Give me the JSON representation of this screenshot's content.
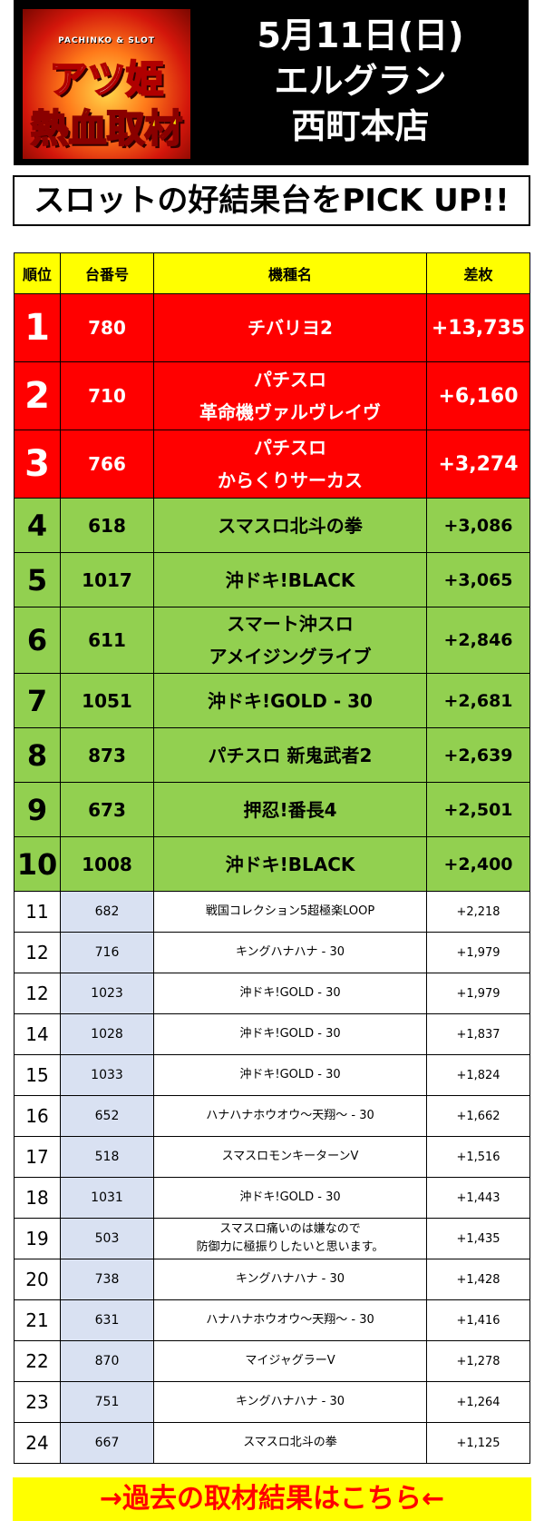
{
  "header": {
    "logo_sub": "PACHINKO & SLOT",
    "logo_line1": "アツ姫",
    "logo_line2": "熱血取材",
    "date": "5月11日(日)",
    "store_line1": "エルグラン",
    "store_line2": "西町本店"
  },
  "subtitle": "スロットの好結果台をPICK UP!!",
  "table": {
    "headers": [
      "順位",
      "台番号",
      "機種名",
      "差枚"
    ],
    "rows": [
      {
        "rank": "1",
        "num": "780",
        "name": [
          "チバリヨ2"
        ],
        "diff": "+13,735"
      },
      {
        "rank": "2",
        "num": "710",
        "name": [
          "パチスロ",
          "革命機ヴァルヴレイヴ"
        ],
        "diff": "+6,160"
      },
      {
        "rank": "3",
        "num": "766",
        "name": [
          "パチスロ",
          "からくりサーカス"
        ],
        "diff": "+3,274"
      },
      {
        "rank": "4",
        "num": "618",
        "name": [
          "スマスロ北斗の拳"
        ],
        "diff": "+3,086"
      },
      {
        "rank": "5",
        "num": "1017",
        "name": [
          "沖ドキ!BLACK"
        ],
        "diff": "+3,065"
      },
      {
        "rank": "6",
        "num": "611",
        "name": [
          "スマート沖スロ",
          "アメイジングライブ"
        ],
        "diff": "+2,846"
      },
      {
        "rank": "7",
        "num": "1051",
        "name": [
          "沖ドキ!GOLD - 30"
        ],
        "diff": "+2,681"
      },
      {
        "rank": "8",
        "num": "873",
        "name": [
          "パチスロ 新鬼武者2"
        ],
        "diff": "+2,639"
      },
      {
        "rank": "9",
        "num": "673",
        "name": [
          "押忍!番長4"
        ],
        "diff": "+2,501"
      },
      {
        "rank": "10",
        "num": "1008",
        "name": [
          "沖ドキ!BLACK"
        ],
        "diff": "+2,400"
      },
      {
        "rank": "11",
        "num": "682",
        "name": [
          "戦国コレクション5超極楽LOOP"
        ],
        "diff": "+2,218"
      },
      {
        "rank": "12",
        "num": "716",
        "name": [
          "キングハナハナ - 30"
        ],
        "diff": "+1,979"
      },
      {
        "rank": "12",
        "num": "1023",
        "name": [
          "沖ドキ!GOLD - 30"
        ],
        "diff": "+1,979"
      },
      {
        "rank": "14",
        "num": "1028",
        "name": [
          "沖ドキ!GOLD - 30"
        ],
        "diff": "+1,837"
      },
      {
        "rank": "15",
        "num": "1033",
        "name": [
          "沖ドキ!GOLD - 30"
        ],
        "diff": "+1,824"
      },
      {
        "rank": "16",
        "num": "652",
        "name": [
          "ハナハナホウオウ～天翔～ - 30"
        ],
        "diff": "+1,662"
      },
      {
        "rank": "17",
        "num": "518",
        "name": [
          "スマスロモンキーターンV"
        ],
        "diff": "+1,516"
      },
      {
        "rank": "18",
        "num": "1031",
        "name": [
          "沖ドキ!GOLD - 30"
        ],
        "diff": "+1,443"
      },
      {
        "rank": "19",
        "num": "503",
        "name": [
          "スマスロ痛いのは嫌なので",
          "防御力に極振りしたいと思います。"
        ],
        "diff": "+1,435"
      },
      {
        "rank": "20",
        "num": "738",
        "name": [
          "キングハナハナ - 30"
        ],
        "diff": "+1,428"
      },
      {
        "rank": "21",
        "num": "631",
        "name": [
          "ハナハナホウオウ～天翔～ - 30"
        ],
        "diff": "+1,416"
      },
      {
        "rank": "22",
        "num": "870",
        "name": [
          "マイジャグラーV"
        ],
        "diff": "+1,278"
      },
      {
        "rank": "23",
        "num": "751",
        "name": [
          "キングハナハナ - 30"
        ],
        "diff": "+1,264"
      },
      {
        "rank": "24",
        "num": "667",
        "name": [
          "スマスロ北斗の拳"
        ],
        "diff": "+1,125"
      }
    ]
  },
  "footer": {
    "link_label": "→過去の取材結果はこちら←"
  },
  "colors": {
    "top3": "#ff0000",
    "top10": "#92d050",
    "header_row": "#ffff00",
    "num_cell": "#d9e1f2"
  }
}
